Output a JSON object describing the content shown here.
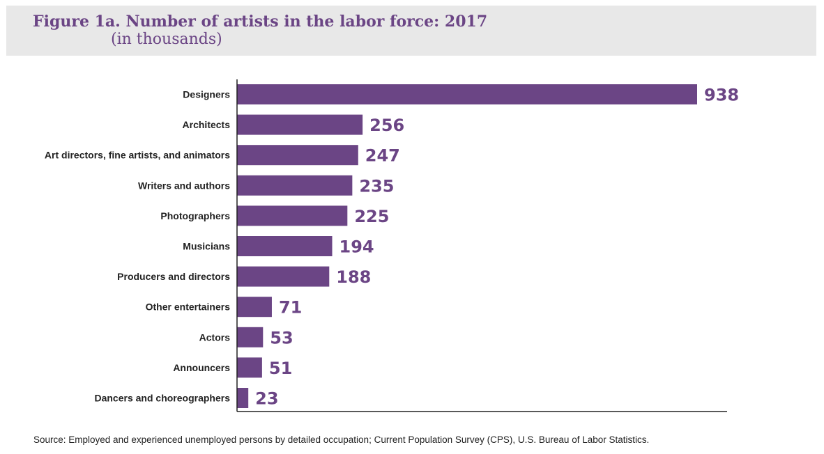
{
  "chart_data": {
    "type": "bar",
    "orientation": "horizontal",
    "title": "Figure 1a. Number of artists in the labor force: 2017",
    "subtitle": "(in thousands)",
    "categories": [
      "Designers",
      "Architects",
      "Art directors, fine artists, and animators",
      "Writers and authors",
      "Photographers",
      "Musicians",
      "Producers and directors",
      "Other entertainers",
      "Actors",
      "Announcers",
      "Dancers and choreographers"
    ],
    "values": [
      938,
      256,
      247,
      235,
      225,
      194,
      188,
      71,
      53,
      51,
      23
    ],
    "value_labels": [
      "938",
      "256",
      "247",
      "235",
      "225",
      "194",
      "188",
      "71",
      "53",
      "51",
      "23"
    ],
    "xlim": [
      0,
      1000
    ],
    "grid": false,
    "bar_color": "#6b4585",
    "label_color": "#6b4585",
    "header_background": "#e8e8e8"
  },
  "source": "Source: Employed and experienced unemployed persons by detailed occupation; Current Population Survey (CPS), U.S. Bureau of Labor Statistics."
}
